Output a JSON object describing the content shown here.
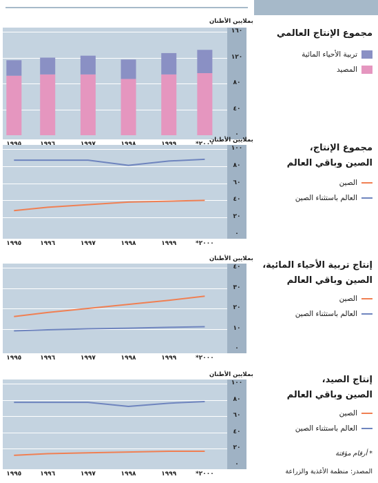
{
  "colors": {
    "plot_bg": "#c4d3e0",
    "axis_bg": "#9fb2c4",
    "aquaculture": "#8a90c4",
    "capture": "#e596bf",
    "china": "#f07f52",
    "world": "#6e84be"
  },
  "chart_data": [
    {
      "type": "bar",
      "stacked": true,
      "title": "مجموع الإنتاج العالمي",
      "unit": "بملايين الأطنان",
      "categories": [
        "١٩٩٥",
        "١٩٩٦",
        "١٩٩٧",
        "١٩٩٨",
        "١٩٩٩",
        "*٢٠٠٠"
      ],
      "x": [
        1995,
        1996,
        1997,
        1998,
        1999,
        2000
      ],
      "ylim": [
        0,
        160
      ],
      "yticks": [
        "٠",
        "٤٠",
        "٨٠",
        "١٢٠",
        "١٦٠"
      ],
      "ytick_values": [
        0,
        40,
        80,
        120,
        160
      ],
      "series": [
        {
          "name": "المصيد",
          "color": "#e596bf",
          "values": [
            92,
            94,
            94,
            87,
            94,
            96
          ]
        },
        {
          "name": "تربية الأحياء المائية",
          "color": "#8a90c4",
          "values": [
            24,
            26,
            29,
            30,
            33,
            36
          ]
        }
      ]
    },
    {
      "type": "line",
      "title": [
        "مجموع الإنتاج،",
        "الصين وباقي العالم"
      ],
      "unit": "بملايين الأطنان",
      "categories": [
        "١٩٩٥",
        "١٩٩٦",
        "١٩٩٧",
        "١٩٩٨",
        "١٩٩٩",
        "*٢٠٠٠"
      ],
      "x": [
        1995,
        1996,
        1997,
        1998,
        1999,
        2000
      ],
      "ylim": [
        0,
        100
      ],
      "yticks": [
        "٠",
        "٢٠",
        "٤٠",
        "٦٠",
        "٨٠",
        "١٠٠"
      ],
      "ytick_values": [
        0,
        20,
        40,
        60,
        80,
        100
      ],
      "series": [
        {
          "name": "الصين",
          "color": "#f07f52",
          "values": [
            28,
            32,
            35,
            38,
            39,
            40
          ]
        },
        {
          "name": "العالم باستثناء الصين",
          "color": "#6e84be",
          "values": [
            87,
            87,
            87,
            81,
            86,
            88
          ]
        }
      ]
    },
    {
      "type": "line",
      "title": [
        "إنتاج تربية الأحياء المائية،",
        "الصين وباقي العالم"
      ],
      "unit": "بملايين الأطنان",
      "categories": [
        "١٩٩٥",
        "١٩٩٦",
        "١٩٩٧",
        "١٩٩٨",
        "١٩٩٩",
        "*٢٠٠٠"
      ],
      "x": [
        1995,
        1996,
        1997,
        1998,
        1999,
        2000
      ],
      "ylim": [
        0,
        40
      ],
      "yticks": [
        "٠",
        "١٠",
        "٢٠",
        "٣٠",
        "٤٠"
      ],
      "ytick_values": [
        0,
        10,
        20,
        30,
        40
      ],
      "series": [
        {
          "name": "الصين",
          "color": "#f07f52",
          "values": [
            16,
            18,
            20,
            22,
            24,
            26
          ]
        },
        {
          "name": "العالم باستثناء الصين",
          "color": "#6e84be",
          "values": [
            9,
            9.5,
            10,
            10.3,
            10.7,
            11
          ]
        }
      ]
    },
    {
      "type": "line",
      "title": [
        "إنتاج الصيد،",
        "الصين وباقي العالم"
      ],
      "unit": "بملايين الأطنان",
      "categories": [
        "١٩٩٥",
        "١٩٩٦",
        "١٩٩٧",
        "١٩٩٨",
        "١٩٩٩",
        "*٢٠٠٠"
      ],
      "x": [
        1995,
        1996,
        1997,
        1998,
        1999,
        2000
      ],
      "ylim": [
        0,
        100
      ],
      "yticks": [
        "٠",
        "٢٠",
        "٤٠",
        "٦٠",
        "٨٠",
        "١٠٠"
      ],
      "ytick_values": [
        0,
        20,
        40,
        60,
        80,
        100
      ],
      "series": [
        {
          "name": "الصين",
          "color": "#f07f52",
          "values": [
            12,
            14,
            15,
            16,
            17,
            17
          ]
        },
        {
          "name": "العالم باستثناء الصين",
          "color": "#6e84be",
          "values": [
            77,
            77,
            77,
            72,
            76,
            78
          ]
        }
      ]
    }
  ],
  "footnote": "* أرقام مؤقتة",
  "source": "المصدر: منظمة الأغذية والزراعة"
}
